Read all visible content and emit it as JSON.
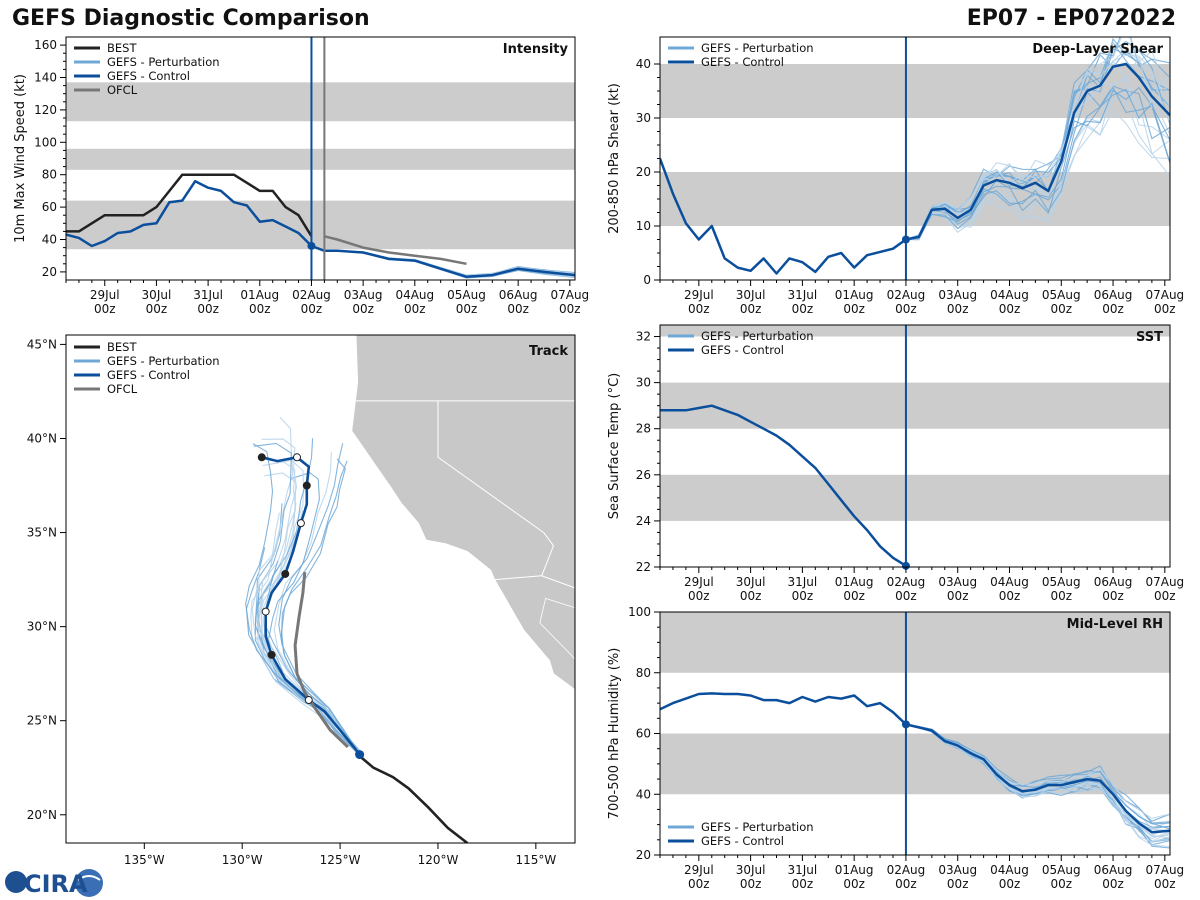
{
  "header": {
    "title_left": "GEFS Diagnostic Comparison",
    "title_right": "EP07 - EP072022"
  },
  "colors": {
    "best": "#222222",
    "pert": "#6fa8d6",
    "pert_light": "#b7d3ea",
    "control": "#0b4f9c",
    "ofcl": "#777777",
    "band": "#cccccc",
    "land": "#c8c8c8"
  },
  "time_axis": {
    "ticks": [
      "29Jul\n00z",
      "30Jul\n00z",
      "31Jul\n00z",
      "01Aug\n00z",
      "02Aug\n00z",
      "03Aug\n00z",
      "04Aug\n00z",
      "05Aug\n00z",
      "06Aug\n00z",
      "07Aug\n00z"
    ],
    "tick_days": [
      1,
      2,
      3,
      4,
      5,
      6,
      7,
      8,
      9,
      10
    ],
    "range_days": [
      0.25,
      10.1
    ],
    "init_day": 5.0
  },
  "logo": {
    "text": "CIRA"
  },
  "chart_data": [
    {
      "id": "intensity",
      "type": "line",
      "title": "Intensity",
      "ylabel": "10m Max Wind Speed (kt)",
      "ylim": [
        15,
        165
      ],
      "yticks": [
        20,
        40,
        60,
        80,
        100,
        120,
        140,
        160
      ],
      "bands": [
        [
          34,
          64
        ],
        [
          83,
          96
        ],
        [
          113,
          137
        ]
      ],
      "ofcl_line_day": 5.25,
      "legend": [
        "BEST",
        "GEFS - Perturbation",
        "GEFS - Control",
        "OFCL"
      ],
      "series": [
        {
          "name": "BEST",
          "x": [
            0.25,
            0.5,
            0.75,
            1.0,
            1.25,
            1.5,
            1.75,
            2.0,
            2.25,
            2.5,
            2.75,
            3.0,
            3.25,
            3.5,
            3.75,
            4.0,
            4.25,
            4.5,
            4.75,
            5.0
          ],
          "y": [
            45,
            45,
            50,
            55,
            55,
            55,
            55,
            60,
            70,
            80,
            80,
            80,
            80,
            80,
            75,
            70,
            70,
            60,
            55,
            42
          ]
        },
        {
          "name": "GEFS - Control",
          "x": [
            0.25,
            0.5,
            0.75,
            1.0,
            1.25,
            1.5,
            1.75,
            2.0,
            2.25,
            2.5,
            2.75,
            3.0,
            3.25,
            3.5,
            3.75,
            4.0,
            4.25,
            4.5,
            4.75,
            5.0,
            5.25,
            5.5,
            6.0,
            6.5,
            7.0,
            7.5,
            8.0,
            8.5,
            9.0,
            9.5,
            10.1
          ],
          "y": [
            43,
            41,
            36,
            39,
            44,
            45,
            49,
            50,
            63,
            64,
            76,
            72,
            70,
            63,
            61,
            51,
            52,
            48,
            44,
            36,
            33,
            33,
            32,
            28,
            27,
            22,
            17,
            18,
            22,
            20,
            18
          ]
        },
        {
          "name": "OFCL",
          "x": [
            5.25,
            5.5,
            6.0,
            6.5,
            7.0,
            7.5,
            8.0
          ],
          "y": [
            42,
            40,
            35,
            32,
            30,
            28,
            25
          ]
        }
      ]
    },
    {
      "id": "shear",
      "type": "line",
      "title": "Deep-Layer Shear",
      "ylabel": "200-850 hPa Shear (kt)",
      "ylim": [
        0,
        45
      ],
      "yticks": [
        0,
        10,
        20,
        30,
        40
      ],
      "bands": [
        [
          10,
          20
        ],
        [
          30,
          40
        ]
      ],
      "legend": [
        "GEFS - Perturbation",
        "GEFS - Control"
      ],
      "series": [
        {
          "name": "GEFS - Control",
          "x": [
            0.25,
            0.5,
            0.75,
            1.0,
            1.25,
            1.5,
            1.75,
            2.0,
            2.25,
            2.5,
            2.75,
            3.0,
            3.25,
            3.5,
            3.75,
            4.0,
            4.25,
            4.5,
            4.75,
            5.0,
            5.25,
            5.5,
            5.75,
            6.0,
            6.25,
            6.5,
            6.75,
            7.0,
            7.25,
            7.5,
            7.75,
            8.0,
            8.25,
            8.5,
            8.75,
            9.0,
            9.25,
            9.5,
            9.75,
            10.1
          ],
          "y": [
            22.5,
            16,
            10.5,
            7.5,
            10,
            4,
            2.3,
            1.7,
            4,
            1.2,
            4,
            3.3,
            1.5,
            4.3,
            5,
            2.3,
            4.6,
            5.2,
            5.8,
            7.5,
            8,
            13,
            13.2,
            11.5,
            13,
            17.5,
            18.5,
            18,
            17,
            18,
            16.5,
            22,
            31,
            35,
            36,
            39.5,
            40,
            37.5,
            34,
            30.5
          ]
        }
      ]
    },
    {
      "id": "sst",
      "type": "line",
      "title": "SST",
      "ylabel": "Sea Surface Temp (°C)",
      "ylim": [
        22,
        32.5
      ],
      "yticks": [
        22,
        24,
        26,
        28,
        30,
        32
      ],
      "bands": [
        [
          24,
          26
        ],
        [
          28,
          30
        ],
        [
          32,
          34
        ]
      ],
      "legend": [
        "GEFS - Perturbation",
        "GEFS - Control"
      ],
      "series": [
        {
          "name": "GEFS - Control",
          "x": [
            0.25,
            0.5,
            0.75,
            1.0,
            1.25,
            1.5,
            1.75,
            2.0,
            2.25,
            2.5,
            2.75,
            3.0,
            3.25,
            3.5,
            3.75,
            4.0,
            4.25,
            4.5,
            4.75,
            5.0
          ],
          "y": [
            28.8,
            28.8,
            28.8,
            28.9,
            29.0,
            28.8,
            28.6,
            28.3,
            28.0,
            27.7,
            27.3,
            26.8,
            26.3,
            25.6,
            24.9,
            24.2,
            23.6,
            22.9,
            22.4,
            22.05
          ]
        }
      ]
    },
    {
      "id": "rh",
      "type": "line",
      "title": "Mid-Level RH",
      "ylabel": "700-500 hPa Humidity (%)",
      "ylim": [
        20,
        100
      ],
      "yticks": [
        20,
        40,
        60,
        80,
        100
      ],
      "bands": [
        [
          40,
          60
        ],
        [
          80,
          100
        ]
      ],
      "legend": [
        "GEFS - Perturbation",
        "GEFS - Control"
      ],
      "series": [
        {
          "name": "GEFS - Control",
          "x": [
            0.25,
            0.5,
            0.75,
            1.0,
            1.25,
            1.5,
            1.75,
            2.0,
            2.25,
            2.5,
            2.75,
            3.0,
            3.25,
            3.5,
            3.75,
            4.0,
            4.25,
            4.5,
            4.75,
            5.0,
            5.25,
            5.5,
            5.75,
            6.0,
            6.25,
            6.5,
            6.75,
            7.0,
            7.25,
            7.5,
            7.75,
            8.0,
            8.25,
            8.5,
            8.75,
            9.0,
            9.25,
            9.5,
            9.75,
            10.1
          ],
          "y": [
            68,
            70,
            71.5,
            73,
            73.2,
            73,
            73,
            72.5,
            71,
            71,
            70,
            72,
            70.5,
            72,
            71.5,
            72.5,
            69,
            70,
            67,
            63,
            62,
            61,
            57.5,
            56,
            53.5,
            51.5,
            46.5,
            43,
            41,
            41.5,
            43,
            43,
            44,
            45,
            44.5,
            40,
            34.5,
            30.5,
            27.5,
            28
          ]
        }
      ]
    },
    {
      "id": "track",
      "type": "line",
      "title": "Track",
      "xlim": [
        -139,
        -113
      ],
      "ylim": [
        18.5,
        45.5
      ],
      "xticks": [
        -135,
        -130,
        -125,
        -120,
        -115
      ],
      "xtick_labels": [
        "135°W",
        "130°W",
        "125°W",
        "120°W",
        "115°W"
      ],
      "yticks": [
        20,
        25,
        30,
        35,
        40,
        45
      ],
      "ytick_labels": [
        "20°N",
        "25°N",
        "30°N",
        "35°N",
        "40°N",
        "45°N"
      ],
      "legend": [
        "BEST",
        "GEFS - Perturbation",
        "GEFS - Control",
        "OFCL"
      ],
      "series": [
        {
          "name": "BEST",
          "lon": [
            -118.5,
            -119.5,
            -120.5,
            -121.5,
            -122.3,
            -123.3,
            -124.2
          ],
          "lat": [
            18.5,
            19.3,
            20.4,
            21.4,
            22.0,
            22.5,
            23.3
          ]
        },
        {
          "name": "GEFS - Control",
          "lon": [
            -124.0,
            -125.0,
            -125.8,
            -126.6,
            -127.8,
            -128.5,
            -128.8,
            -128.8,
            -128.5,
            -127.8,
            -127.4,
            -127.0,
            -126.7,
            -126.7,
            -126.6,
            -127.2,
            -128.2,
            -129.0
          ],
          "lat": [
            23.2,
            24.5,
            25.5,
            26.1,
            27.2,
            28.5,
            29.5,
            30.8,
            31.8,
            32.8,
            34.0,
            35.5,
            36.5,
            37.5,
            38.5,
            39.0,
            38.8,
            39.0
          ]
        },
        {
          "name": "OFCL",
          "lon": [
            -124.6,
            -125.5,
            -126.3,
            -126.8,
            -127.2,
            -127.3,
            -127.1,
            -126.9,
            -126.8
          ],
          "lat": [
            23.6,
            24.5,
            25.7,
            26.5,
            27.5,
            29.0,
            30.5,
            31.8,
            32.9
          ]
        }
      ]
    }
  ]
}
